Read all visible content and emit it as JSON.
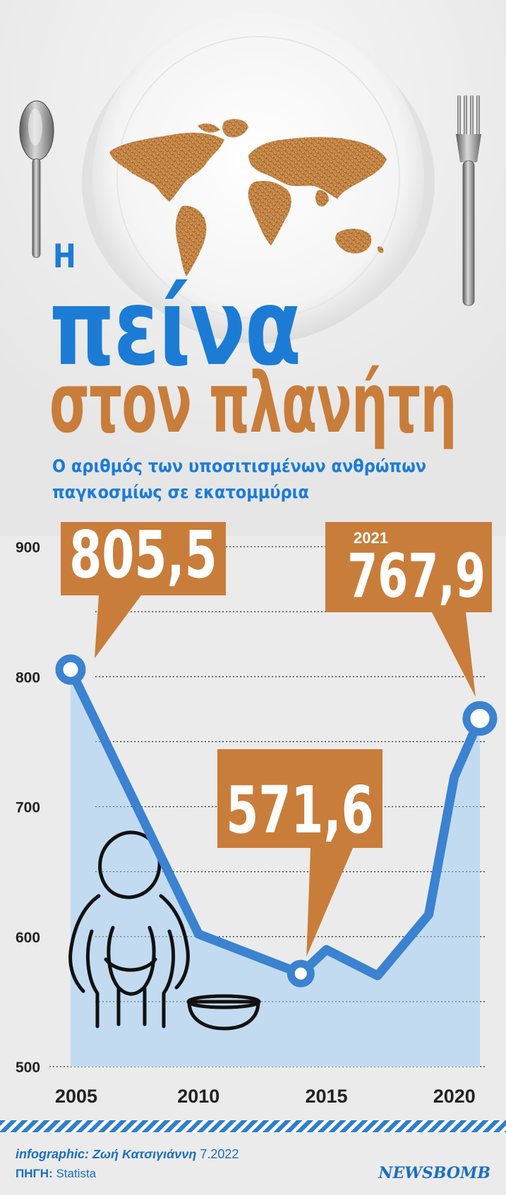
{
  "header": {
    "title_article": "Η",
    "title_main": "πείνα",
    "title_sub": "στον πλανήτη",
    "subtitle_line1": "Ο αριθμός των υποσιτισμένων ανθρώπων",
    "subtitle_line2": "παγκοσμίως σε εκατομμύρια"
  },
  "chart_data": {
    "type": "line",
    "x": [
      2005,
      2010,
      2014,
      2015,
      2017,
      2019,
      2020,
      2021
    ],
    "y": [
      805.5,
      602,
      571.6,
      590,
      570,
      617,
      723,
      767.9
    ],
    "xticks": [
      "2005",
      "2010",
      "2015",
      "2020"
    ],
    "xtick_values": [
      2005,
      2010,
      2015,
      2020
    ],
    "yticks": [
      "500",
      "600",
      "700",
      "800",
      "900"
    ],
    "ylim": [
      500,
      900
    ],
    "xlim": [
      2005,
      2021
    ],
    "grid": "horizontal dotted",
    "colors": {
      "line": "#3b82d0",
      "area": "#c2dbf0",
      "callout": "#c97d3a"
    },
    "callouts": [
      {
        "label": "805,5",
        "year_label": ""
      },
      {
        "label": "571,6",
        "year_label": ""
      },
      {
        "label": "767,9",
        "year_label": "2021"
      }
    ]
  },
  "footer": {
    "credit_prefix": "infographic:",
    "credit_author": " Ζωή Κατσιγιάννη",
    "credit_date": " 7.2022",
    "source_prefix": "ΠΗΓΗ:",
    "source_name": " Statista",
    "logo": "NEWSBOMB"
  }
}
